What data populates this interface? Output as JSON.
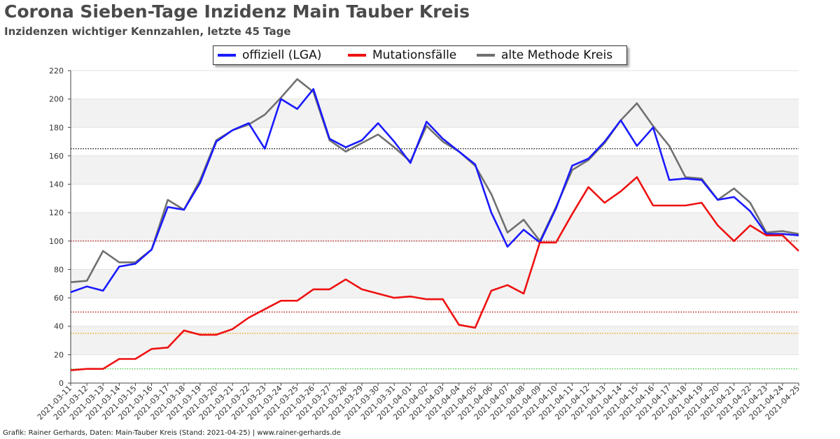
{
  "chart_data": {
    "type": "line",
    "title": "Corona Sieben-Tage Inzidenz Main Tauber Kreis",
    "subtitle": "Inzidenzen wichtiger Kennzahlen, letzte 45 Tage",
    "ylim": [
      0,
      220
    ],
    "yticks": [
      "0",
      "20",
      "40",
      "60",
      "80",
      "100",
      "120",
      "140",
      "160",
      "180",
      "200",
      "220"
    ],
    "grid": "horizontal alternating bands",
    "legend_position": "top-center",
    "categories": [
      "2021-03-11",
      "2021-03-12",
      "2021-03-13",
      "2021-03-14",
      "2021-03-15",
      "2021-03-16",
      "2021-03-17",
      "2021-03-18",
      "2021-03-19",
      "2021-03-20",
      "2021-03-21",
      "2021-03-22",
      "2021-03-23",
      "2021-03-24",
      "2021-03-25",
      "2021-03-26",
      "2021-03-27",
      "2021-03-28",
      "2021-03-29",
      "2021-03-30",
      "2021-03-31",
      "2021-04-01",
      "2021-04-02",
      "2021-04-03",
      "2021-04-04",
      "2021-04-05",
      "2021-04-06",
      "2021-04-07",
      "2021-04-08",
      "2021-04-09",
      "2021-04-10",
      "2021-04-11",
      "2021-04-12",
      "2021-04-13",
      "2021-04-14",
      "2021-04-15",
      "2021-04-16",
      "2021-04-17",
      "2021-04-18",
      "2021-04-19",
      "2021-04-20",
      "2021-04-21",
      "2021-04-22",
      "2021-04-23",
      "2021-04-24",
      "2021-04-25"
    ],
    "series": [
      {
        "name": "alte Methode Kreis",
        "color": "#707070",
        "values": [
          71,
          72,
          93,
          85,
          85,
          94,
          129,
          122,
          143,
          171,
          178,
          182,
          189,
          201,
          214,
          205,
          171,
          163,
          169,
          175,
          166,
          156,
          181,
          170,
          163,
          153,
          133,
          106,
          115,
          100,
          124,
          150,
          157,
          169,
          185,
          197,
          181,
          167,
          145,
          144,
          129,
          137,
          127,
          106,
          107,
          105
        ]
      },
      {
        "name": "offiziell (LGA)",
        "color": "#1a1aff",
        "values": [
          64,
          68,
          65,
          82,
          84,
          94,
          124,
          122,
          141,
          170,
          178,
          183,
          165,
          200,
          193,
          207,
          172,
          166,
          171,
          183,
          170,
          155,
          184,
          172,
          163,
          154,
          120,
          96,
          108,
          99,
          123,
          153,
          158,
          170,
          185,
          167,
          180,
          143,
          144,
          143,
          129,
          131,
          121,
          105,
          105,
          104
        ]
      },
      {
        "name": "Mutationsfälle",
        "color": "#ee1111",
        "values": [
          9,
          10,
          10,
          17,
          17,
          24,
          25,
          37,
          34,
          34,
          38,
          46,
          52,
          58,
          58,
          66,
          66,
          73,
          66,
          63,
          60,
          61,
          59,
          59,
          41,
          39,
          65,
          69,
          63,
          99,
          99,
          119,
          138,
          127,
          135,
          145,
          125,
          125,
          125,
          127,
          111,
          100,
          111,
          104,
          104,
          93
        ]
      }
    ],
    "reference_lines": [
      {
        "value": 165,
        "color": "#000000"
      },
      {
        "value": 100,
        "color": "#b00000"
      },
      {
        "value": 50,
        "color": "#b00000"
      },
      {
        "value": 35,
        "color": "#e8a000"
      },
      {
        "value": 10,
        "color": "#22bb22"
      }
    ]
  },
  "footer": "Grafik: Rainer Gerhards, Daten: Main-Tauber Kreis (Stand: 2021-04-25) | www.rainer-gerhards.de"
}
